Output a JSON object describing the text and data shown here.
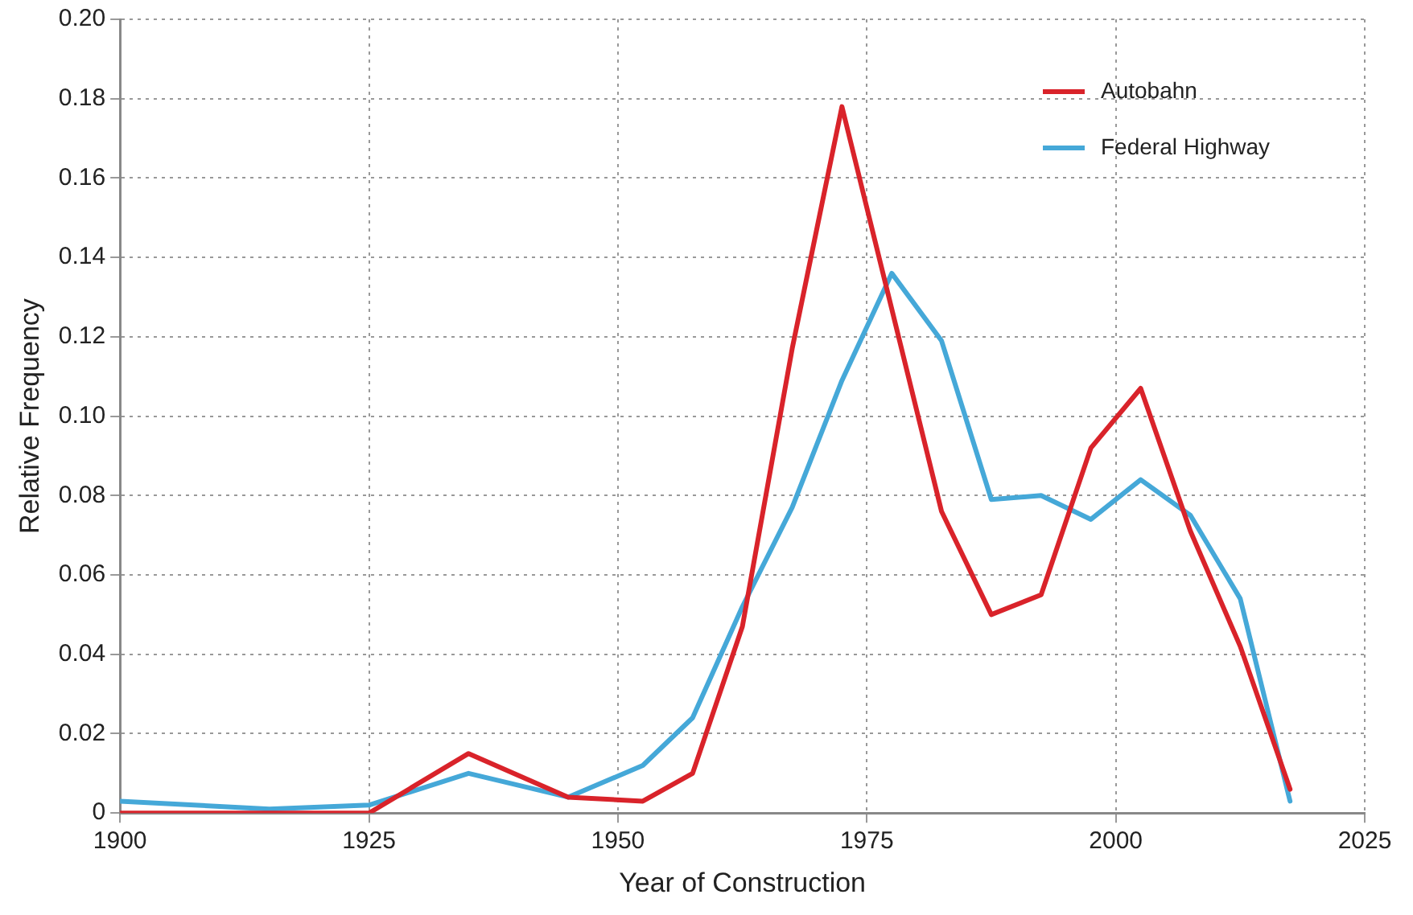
{
  "chart_data": {
    "type": "line",
    "xlabel": "Year of Construction",
    "ylabel": "Relative Frequency",
    "x": [
      1900,
      1915,
      1925,
      1935,
      1945,
      1952.5,
      1957.5,
      1962.5,
      1967.5,
      1972.5,
      1977.5,
      1982.5,
      1987.5,
      1992.5,
      1997.5,
      2002.5,
      2007.5,
      2012.5,
      2017.5
    ],
    "series": [
      {
        "name": "Autobahn",
        "color": "#d9232a",
        "values": [
          0,
          0,
          0,
          0.015,
          0.004,
          0.003,
          0.01,
          0.047,
          0.117,
          0.178,
          0.127,
          0.076,
          0.05,
          0.055,
          0.092,
          0.107,
          0.071,
          0.042,
          0.006
        ]
      },
      {
        "name": "Federal Highway",
        "color": "#45a8d8",
        "values": [
          0.003,
          0.001,
          0.002,
          0.01,
          0.004,
          0.012,
          0.024,
          0.052,
          0.077,
          0.109,
          0.136,
          0.119,
          0.079,
          0.08,
          0.074,
          0.084,
          0.075,
          0.054,
          0.003
        ]
      }
    ],
    "xlim": [
      1900,
      2025
    ],
    "xticks": [
      1900,
      1925,
      1950,
      1975,
      2000,
      2025
    ],
    "ylim": [
      0,
      0.2
    ],
    "yticks": [
      0,
      {
        "value": 0.02,
        "label": "0.02"
      },
      {
        "value": 0.04,
        "label": "0.04"
      },
      {
        "value": 0.06,
        "label": "0.06"
      },
      {
        "value": 0.08,
        "label": "0.08"
      },
      {
        "value": 0.1,
        "label": "0.10"
      },
      {
        "value": 0.12,
        "label": "0.12"
      },
      {
        "value": 0.14,
        "label": "0.14"
      },
      {
        "value": 0.16,
        "label": "0.16"
      },
      {
        "value": 0.18,
        "label": "0.18"
      },
      {
        "value": 0.2,
        "label": "0.20"
      }
    ],
    "grid": true,
    "legend": "top right",
    "line_style": "solid",
    "marker": "none"
  }
}
